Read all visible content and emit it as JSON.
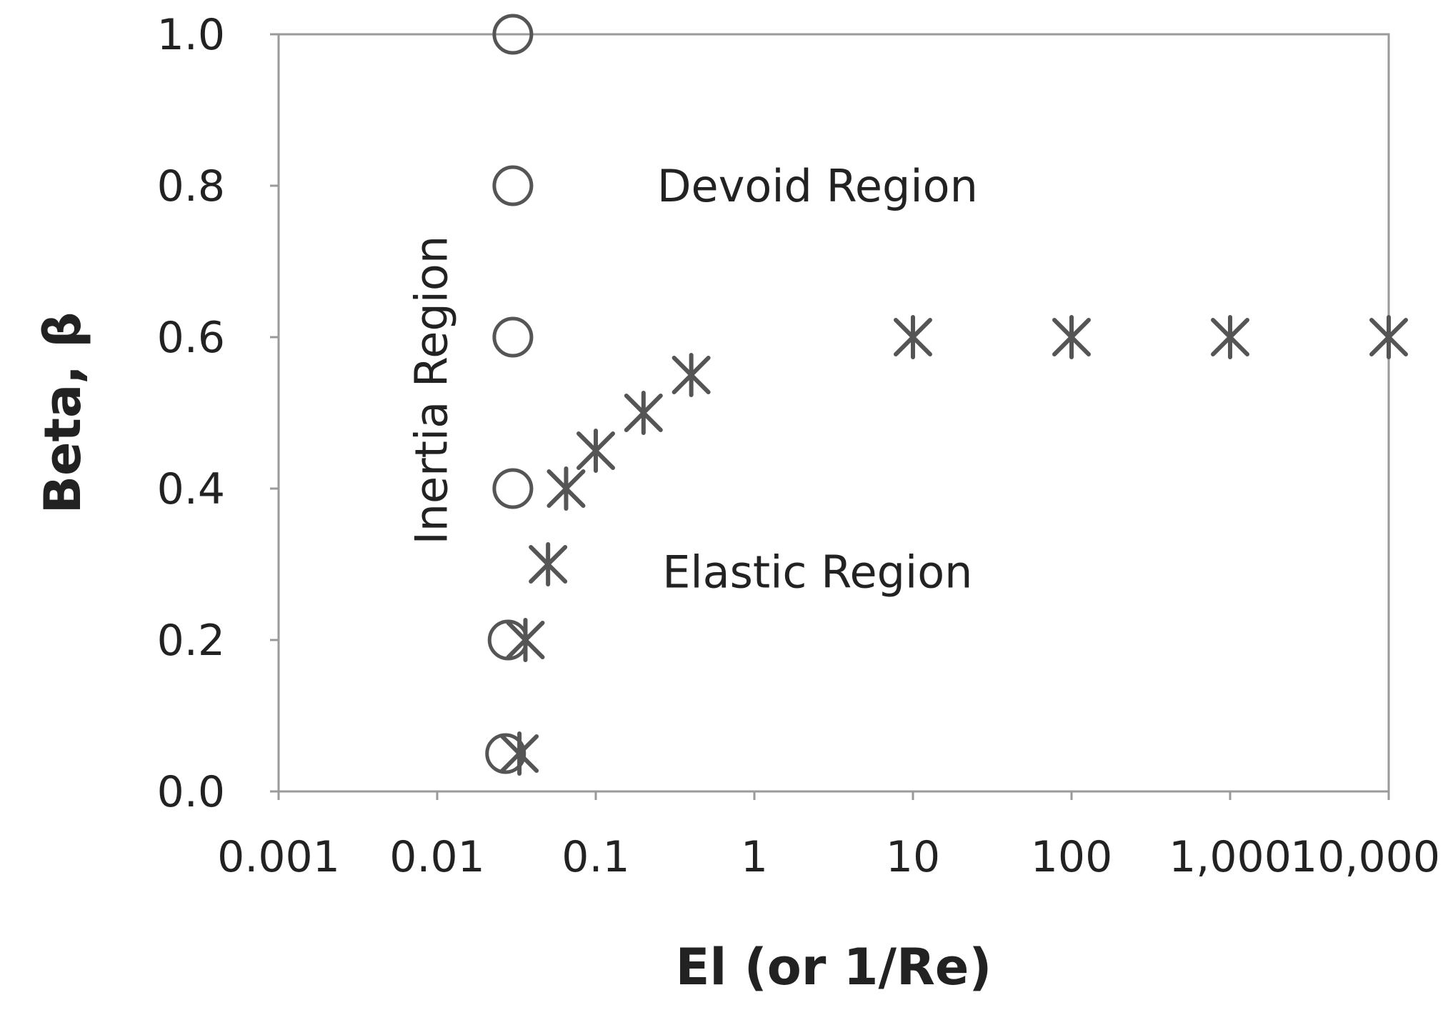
{
  "chart_data": {
    "type": "scatter",
    "title": "",
    "xlabel": "El (or 1/Re)",
    "ylabel": "Beta, β",
    "x_scale": "log",
    "xlim": [
      0.001,
      10000
    ],
    "ylim": [
      0.0,
      1.0
    ],
    "x_ticks": [
      0.001,
      0.01,
      0.1,
      1,
      10,
      100,
      1000,
      10000
    ],
    "x_tick_labels": [
      "0.001",
      "0.01",
      "0.1",
      "1",
      "10",
      "100",
      "1,000",
      "10,000"
    ],
    "y_ticks": [
      0.0,
      0.2,
      0.4,
      0.6,
      0.8,
      1.0
    ],
    "y_tick_labels": [
      "0.0",
      "0.2",
      "0.4",
      "0.6",
      "0.8",
      "1.0"
    ],
    "grid": false,
    "legend": "none",
    "marker_color": "#555555",
    "series": [
      {
        "marker": "circle",
        "points": [
          {
            "x": 0.03,
            "y": 1.0
          },
          {
            "x": 0.03,
            "y": 0.8
          },
          {
            "x": 0.03,
            "y": 0.6
          },
          {
            "x": 0.03,
            "y": 0.4
          },
          {
            "x": 0.028,
            "y": 0.2
          },
          {
            "x": 0.027,
            "y": 0.05
          }
        ]
      },
      {
        "marker": "asterisk",
        "points": [
          {
            "x": 0.033,
            "y": 0.05
          },
          {
            "x": 0.036,
            "y": 0.2
          },
          {
            "x": 0.05,
            "y": 0.3
          },
          {
            "x": 0.065,
            "y": 0.4
          },
          {
            "x": 0.1,
            "y": 0.45
          },
          {
            "x": 0.2,
            "y": 0.5
          },
          {
            "x": 0.4,
            "y": 0.55
          },
          {
            "x": 10,
            "y": 0.6
          },
          {
            "x": 100,
            "y": 0.6
          },
          {
            "x": 1000,
            "y": 0.6
          },
          {
            "x": 10000,
            "y": 0.6
          }
        ]
      }
    ],
    "annotations": [
      {
        "text": "Devoid Region",
        "x": 2.5,
        "y": 0.8
      },
      {
        "text": "Elastic Region",
        "x": 2.5,
        "y": 0.29
      },
      {
        "text": "Inertia Region",
        "x": 0.0115,
        "y": 0.53,
        "rotation": -90
      }
    ]
  }
}
